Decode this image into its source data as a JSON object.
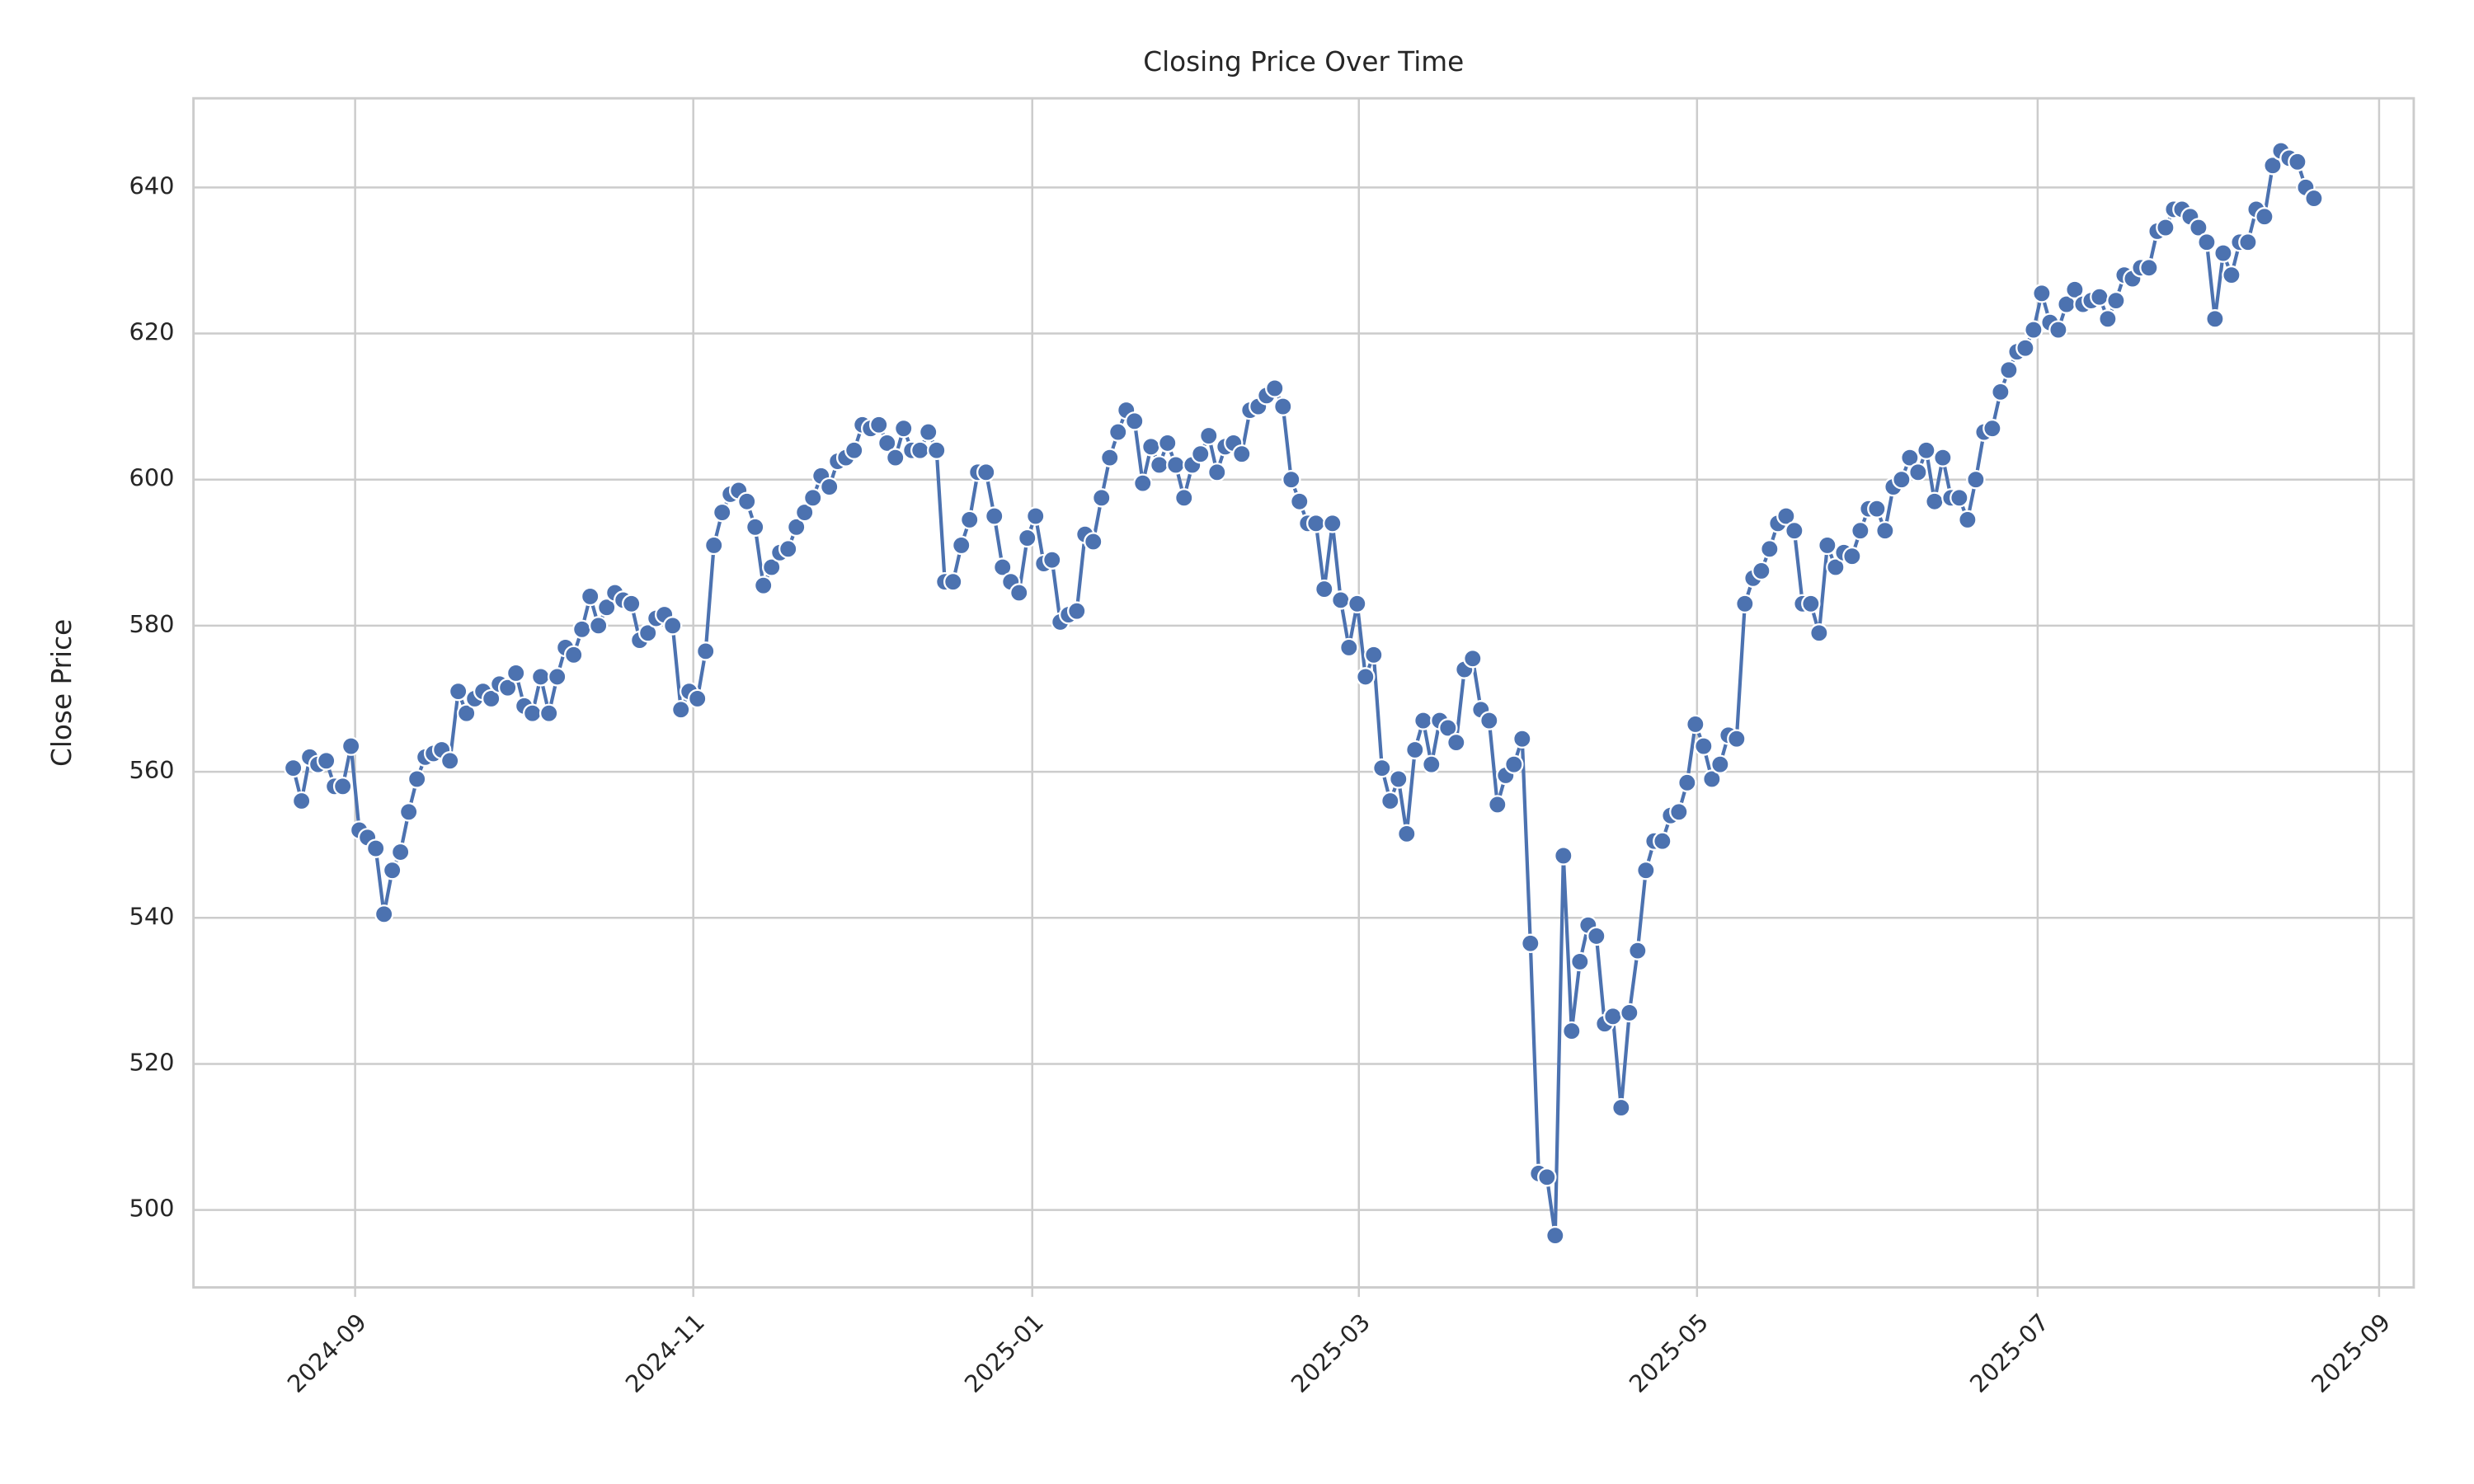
{
  "chart_data": {
    "type": "line",
    "title": "Closing Price Over Time",
    "ylabel": "Close Price",
    "color": "#4c72b0",
    "grid": true,
    "marker": "circle",
    "values": [
      560.5,
      556,
      562,
      561,
      561.5,
      558,
      558,
      563.5,
      552,
      551,
      549.5,
      540.5,
      546.5,
      549,
      554.5,
      559,
      562,
      562.5,
      563,
      561.5,
      571,
      568,
      570,
      571,
      570,
      572,
      571.5,
      573.5,
      569,
      568,
      573,
      568,
      573,
      577,
      576,
      579.5,
      584,
      580,
      582.5,
      584.5,
      583.5,
      583,
      578,
      579,
      581,
      581.5,
      580,
      568.5,
      571,
      570,
      576.5,
      591,
      595.5,
      598,
      598.5,
      597,
      593.5,
      585.5,
      588,
      590,
      590.5,
      593.5,
      595.5,
      597.5,
      600.5,
      599,
      602.5,
      603,
      604,
      607.5,
      607,
      607.5,
      605,
      603,
      607,
      604,
      604,
      606.5,
      604,
      586,
      586,
      591,
      594.5,
      601,
      601,
      595,
      588,
      586,
      584.5,
      592,
      595,
      588.5,
      589,
      580.5,
      581.5,
      582,
      592.5,
      591.5,
      597.5,
      603,
      606.5,
      609.5,
      608,
      599.5,
      604.5,
      602,
      605,
      602,
      597.5,
      602,
      603.5,
      606,
      601,
      604.5,
      605,
      603.5,
      609.5,
      610,
      611.5,
      612.5,
      610,
      600,
      597,
      594,
      594,
      585,
      594,
      583.5,
      577,
      583,
      573,
      576,
      560.5,
      556,
      559,
      551.5,
      563,
      567,
      561,
      567,
      566,
      564,
      574,
      575.5,
      568.5,
      567,
      555.5,
      559.5,
      561,
      564.5,
      536.5,
      505,
      504.5,
      496.5,
      548.5,
      524.5,
      534,
      539,
      537.5,
      525.5,
      526.5,
      514,
      527,
      535.5,
      546.5,
      550.5,
      550.5,
      554,
      554.5,
      558.5,
      566.5,
      563.5,
      559,
      561,
      565,
      564.5,
      583,
      586.5,
      587.5,
      590.5,
      594,
      595,
      593,
      583,
      583,
      579,
      591,
      588,
      590,
      589.5,
      593,
      596,
      596,
      593,
      599,
      600,
      603,
      601,
      604,
      597,
      603,
      597.5,
      597.5,
      594.5,
      600,
      606.5,
      607,
      612,
      615,
      617.5,
      618,
      620.5,
      625.5,
      621.5,
      620.5,
      624,
      626,
      624,
      624.5,
      625,
      622,
      624.5,
      628,
      627.5,
      629,
      629,
      634,
      634.5,
      637,
      637,
      636,
      634.5,
      632.5,
      622,
      631,
      628,
      632.5,
      632.5,
      637,
      636,
      643,
      645,
      644,
      643.5,
      640,
      638.5
    ],
    "xlim": [
      -12.1,
      257.1
    ],
    "xticks": [
      {
        "value": 7.5,
        "label": "2024-09"
      },
      {
        "value": 48.5,
        "label": "2024-11"
      },
      {
        "value": 89.6,
        "label": "2025-01"
      },
      {
        "value": 129.2,
        "label": "2025-03"
      },
      {
        "value": 170.2,
        "label": "2025-05"
      },
      {
        "value": 211.5,
        "label": "2025-07"
      },
      {
        "value": 252.9,
        "label": "2025-09"
      }
    ],
    "ylim": [
      489.4,
      652.2
    ],
    "yticks": [
      500,
      520,
      540,
      560,
      580,
      600,
      620,
      640
    ]
  }
}
